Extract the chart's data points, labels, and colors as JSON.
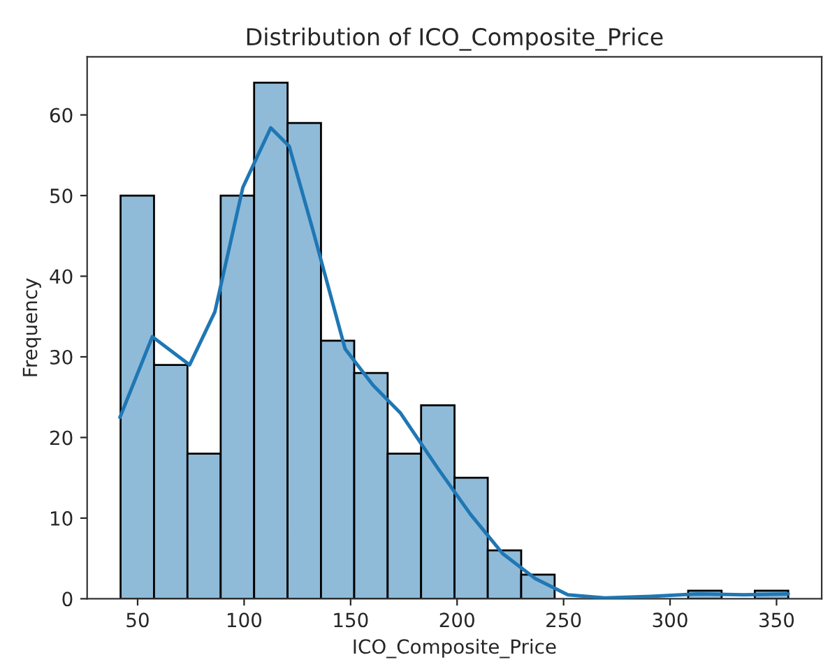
{
  "chart_data": {
    "type": "histogram",
    "title": "Distribution of ICO_Composite_Price",
    "xlabel": "ICO_Composite_Price",
    "ylabel": "Frequency",
    "bins": [
      42.0,
      57.7,
      73.4,
      89.0,
      104.7,
      120.4,
      136.1,
      151.7,
      167.4,
      183.1,
      198.8,
      214.4,
      230.1,
      245.8,
      261.5,
      277.1,
      292.8,
      308.5,
      324.2,
      339.8,
      355.5
    ],
    "values": [
      50,
      29,
      18,
      50,
      64,
      59,
      32,
      28,
      18,
      24,
      15,
      6,
      3,
      0,
      0,
      0,
      0,
      1,
      0,
      1
    ],
    "color": "#8fbbd9",
    "series": [
      {
        "type": "line",
        "color": "#1f77b4",
        "x": [
          41.7,
          56.9,
          74.4,
          86.3,
          99.4,
          112.5,
          121.2,
          132.1,
          147.4,
          160.5,
          173.5,
          190.9,
          206.2,
          221.4,
          236.7,
          252,
          269.4,
          291,
          313,
          334.6,
          355.5
        ],
        "values": [
          22.5,
          32.5,
          29.0,
          35.6,
          51,
          58.4,
          56.1,
          45.9,
          31.0,
          26.5,
          23.0,
          16.2,
          10.5,
          5.6,
          2.5,
          0.5,
          0.1,
          0.3,
          0.6,
          0.5,
          0.6
        ]
      }
    ],
    "xlim": [
      26.3,
      371.2
    ],
    "xticks": [
      50,
      100,
      150,
      200,
      250,
      300,
      350
    ],
    "ylim": [
      0,
      67.2
    ],
    "yticks": [
      0,
      10,
      20,
      30,
      40,
      50,
      60
    ]
  }
}
